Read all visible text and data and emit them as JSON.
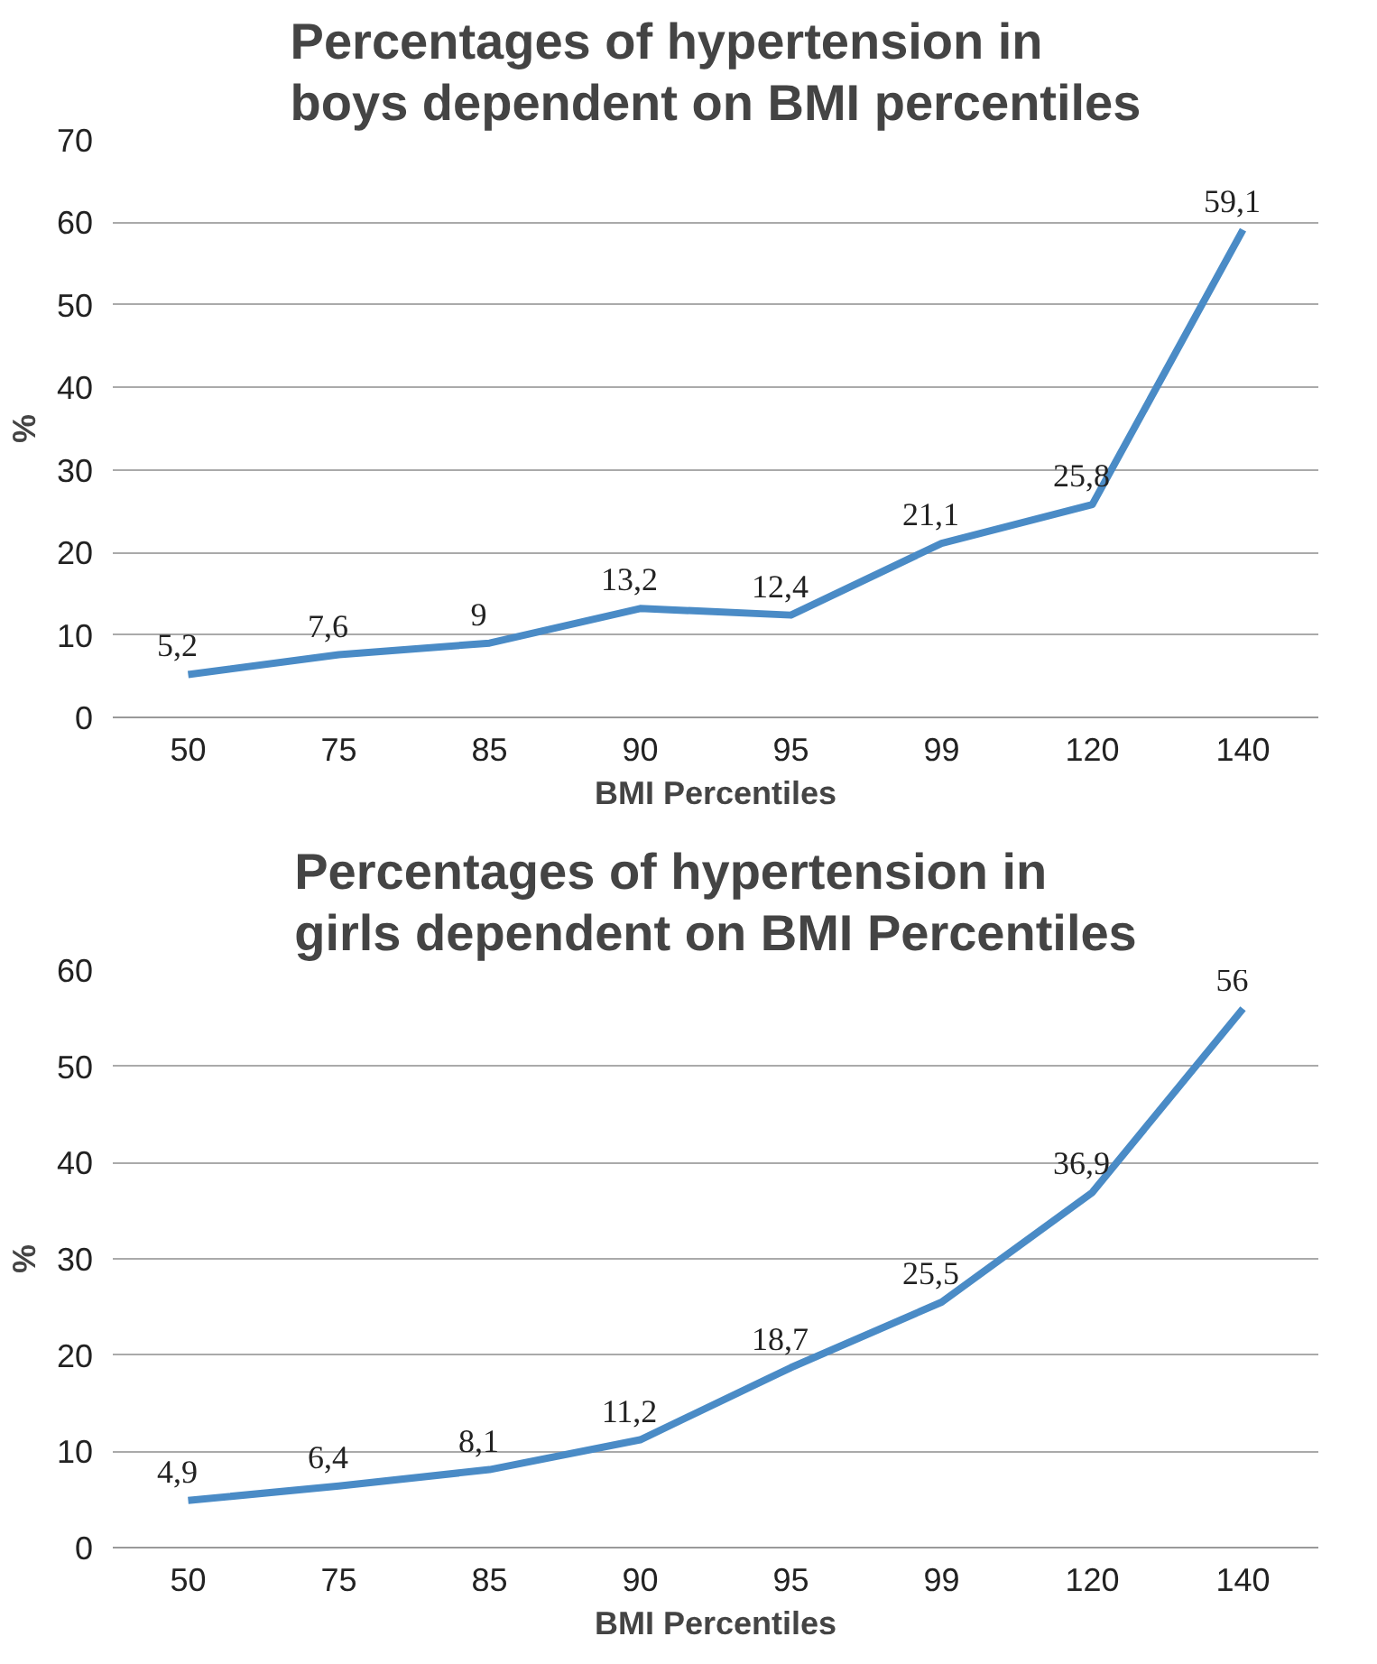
{
  "chart_data": [
    {
      "type": "line",
      "title": "Percentages of hypertension in boys dependent on BMI percentiles",
      "xlabel": "BMI Percentiles",
      "ylabel": "%",
      "categories": [
        "50",
        "75",
        "85",
        "90",
        "95",
        "99",
        "120",
        "140"
      ],
      "series": [
        {
          "color": "#4a8bc6",
          "values": [
            5.2,
            7.6,
            9,
            13.2,
            12.4,
            21.1,
            25.8,
            59.1
          ],
          "value_labels": [
            "5,2",
            "7,6",
            "9",
            "13,2",
            "12,4",
            "21,1",
            "25,8",
            "59,1"
          ]
        }
      ],
      "ylim": [
        0,
        70
      ],
      "yticks": [
        0,
        10,
        20,
        30,
        40,
        50,
        60,
        70
      ],
      "grid": "y",
      "marker": "none",
      "line_style": "solid"
    },
    {
      "type": "line",
      "title": "Percentages of hypertension in girls dependent on BMI Percentiles",
      "xlabel": "BMI Percentiles",
      "ylabel": "%",
      "categories": [
        "50",
        "75",
        "85",
        "90",
        "95",
        "99",
        "120",
        "140"
      ],
      "series": [
        {
          "color": "#4a8bc6",
          "values": [
            4.9,
            6.4,
            8.1,
            11.2,
            18.7,
            25.5,
            36.9,
            56
          ],
          "value_labels": [
            "4,9",
            "6,4",
            "8,1",
            "11,2",
            "18,7",
            "25,5",
            "36,9",
            "56"
          ]
        }
      ],
      "ylim": [
        0,
        60
      ],
      "yticks": [
        0,
        10,
        20,
        30,
        40,
        50,
        60
      ],
      "grid": "y",
      "marker": "none",
      "line_style": "solid"
    }
  ]
}
